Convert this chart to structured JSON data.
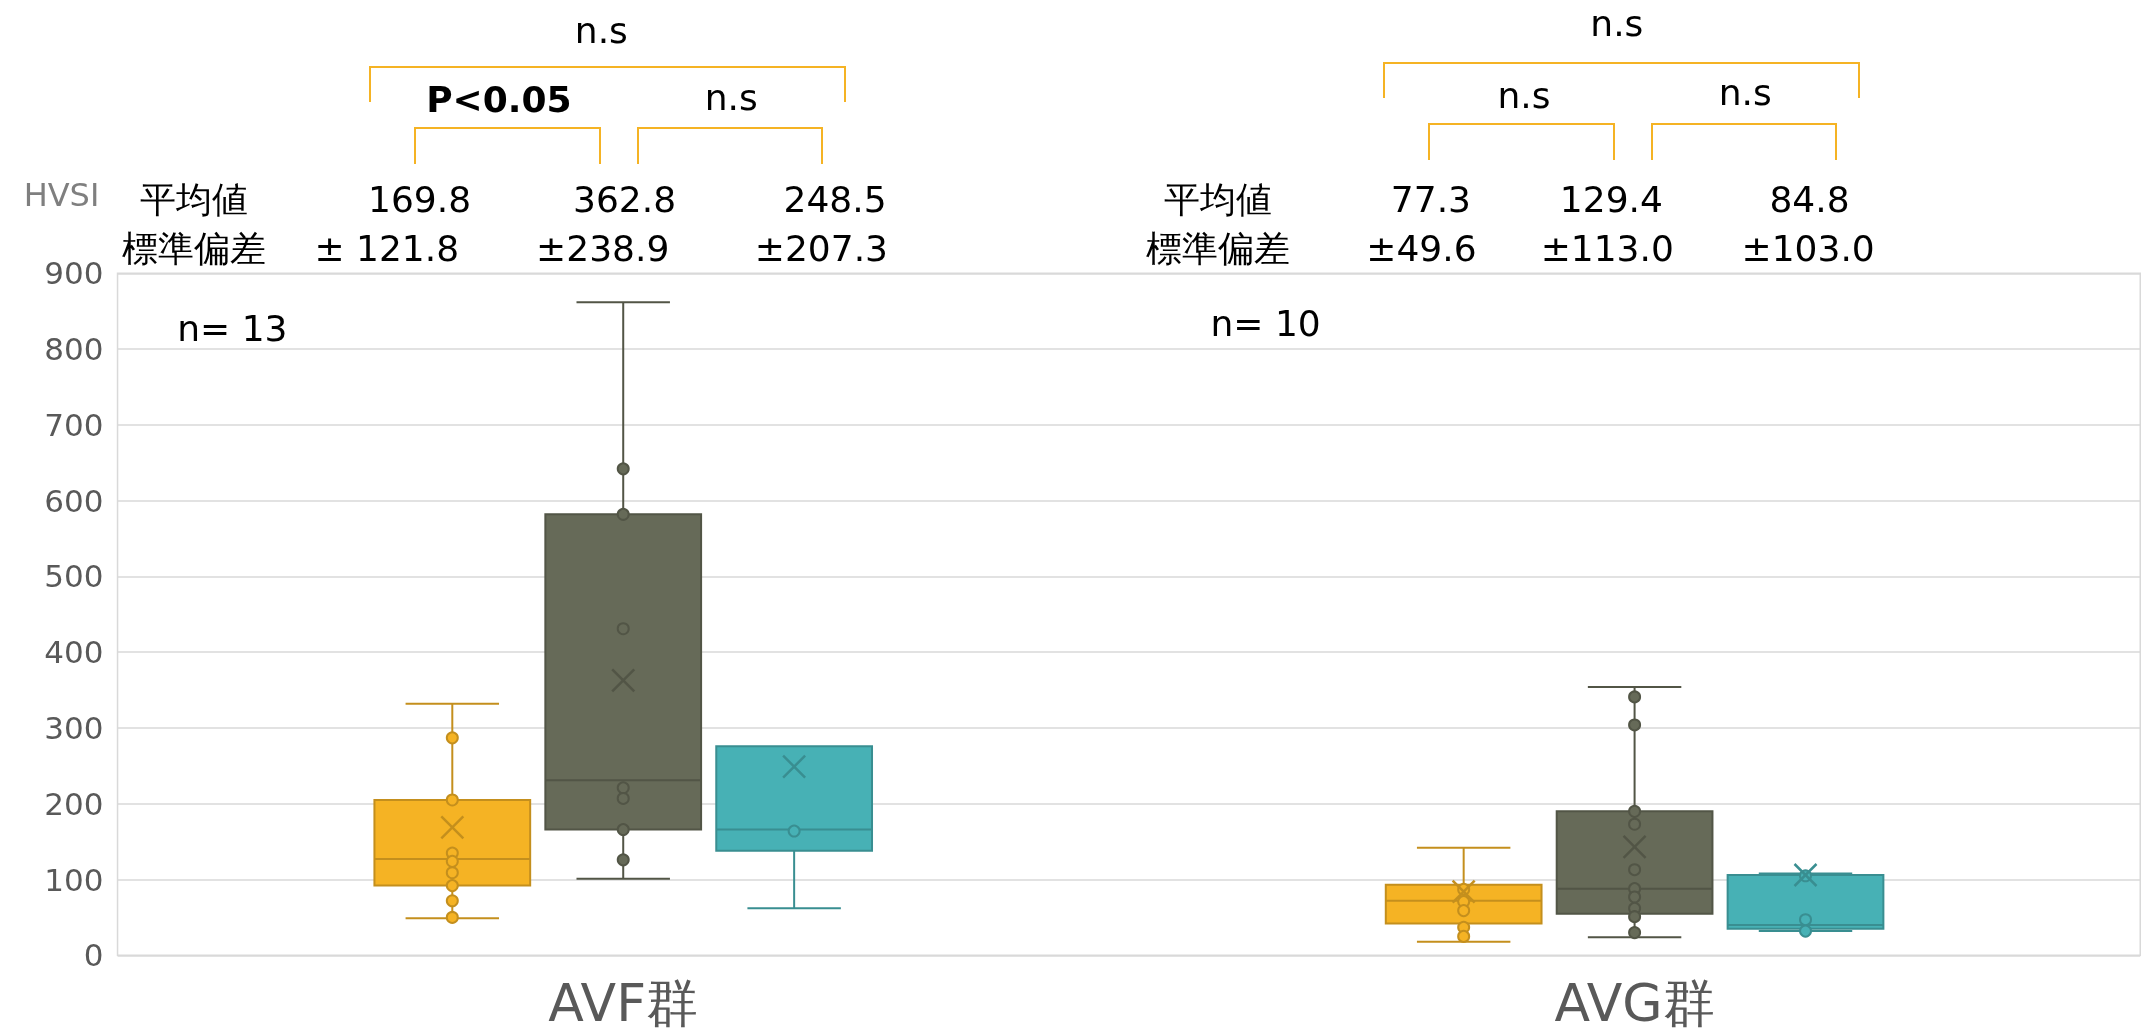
{
  "chart_data": {
    "type": "box",
    "categories": [
      "AVF群",
      "AVG群"
    ],
    "ylabel": "HVSI",
    "ylim": [
      0,
      900
    ],
    "yticks": [
      0,
      100,
      200,
      300,
      400,
      500,
      600,
      700,
      800,
      900
    ],
    "grid": "y",
    "series": [
      {
        "color": "#f5b324",
        "boxes": [
          {
            "low": 49,
            "q1": 92,
            "median": 127,
            "q3": 205,
            "high": 332,
            "mean": 169,
            "outliers": [
              287,
              205,
              135,
              124,
              109,
              92,
              72,
              50
            ]
          },
          {
            "low": 18,
            "q1": 42,
            "median": 72,
            "q3": 93,
            "high": 142,
            "mean": 84,
            "outliers": [
              87,
              71,
              59,
              37,
              25
            ]
          }
        ]
      },
      {
        "color": "#666a58",
        "boxes": [
          {
            "low": 101,
            "q1": 166,
            "median": 231,
            "q3": 582,
            "high": 862,
            "mean": 363,
            "outliers": [
              642,
              582,
              431,
              221,
              207,
              166,
              126
            ]
          },
          {
            "low": 24,
            "q1": 55,
            "median": 88,
            "q3": 190,
            "high": 354,
            "mean": 143,
            "outliers": [
              341,
              304,
              190,
              173,
              113,
              88,
              77,
              62,
              51,
              30
            ]
          }
        ]
      },
      {
        "color": "#47b1b5",
        "boxes": [
          {
            "low": 62,
            "q1": 138,
            "median": 166,
            "q3": 276,
            "high": 276,
            "mean": 249,
            "outliers": [
              164
            ]
          },
          {
            "low": 32,
            "q1": 35,
            "median": 40,
            "q3": 106,
            "high": 108,
            "mean": 106,
            "outliers": [
              105,
              47,
              32
            ]
          }
        ]
      }
    ],
    "annotations": [
      "n.s",
      "P<0.05",
      "n.s",
      "n.s",
      "n.s",
      "n.s",
      "平均値",
      "169.8",
      "362.8",
      "248.5",
      "標準偏差",
      "± 121.8",
      "±238.9",
      "±207.3",
      "平均値",
      "77.3",
      "129.4",
      "84.8",
      "標準偏差",
      "±49.6",
      "±113.0",
      "±103.0",
      "n= 13",
      "n= 10"
    ]
  }
}
